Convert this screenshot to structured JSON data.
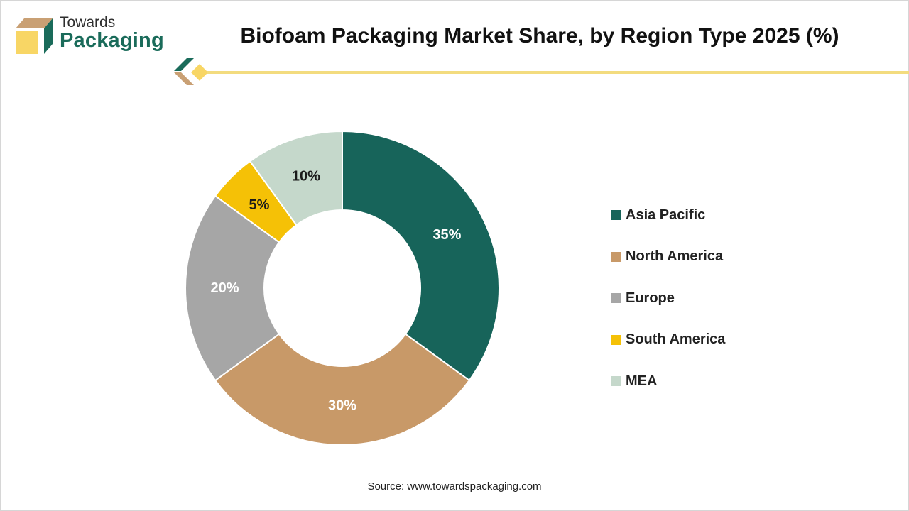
{
  "brand": {
    "line1": "Towards",
    "line2": "Packaging",
    "colors": {
      "green": "#1a6b5a",
      "tan": "#c9a074",
      "yellow": "#f8d665"
    }
  },
  "chart_data": {
    "type": "pie",
    "title": "Biofoam Packaging Market Share, by Region Type 2025 (%)",
    "unit": "%",
    "donut": true,
    "legend_position": "right",
    "slices": [
      {
        "label": "Asia Pacific",
        "value": 35,
        "display": "35%",
        "color": "#17645a",
        "label_color": "#ffffff"
      },
      {
        "label": "North America",
        "value": 30,
        "display": "30%",
        "color": "#c89968",
        "label_color": "#ffffff"
      },
      {
        "label": "Europe",
        "value": 20,
        "display": "20%",
        "color": "#a6a6a6",
        "label_color": "#ffffff"
      },
      {
        "label": "South America",
        "value": 5,
        "display": "5%",
        "color": "#f5c106",
        "label_color": "#1a1a1a"
      },
      {
        "label": "MEA",
        "value": 10,
        "display": "10%",
        "color": "#c5d8cb",
        "label_color": "#1a1a1a"
      }
    ]
  },
  "source": "Source: www.towardspackaging.com"
}
